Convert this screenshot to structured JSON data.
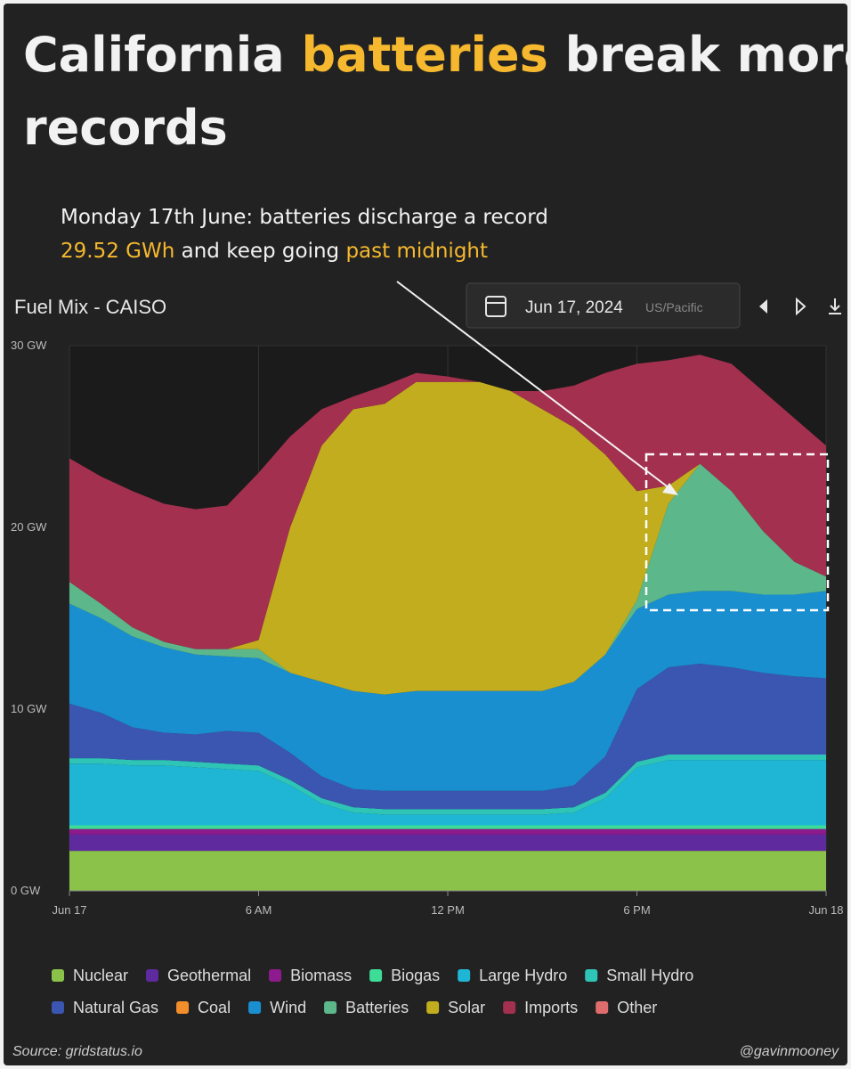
{
  "header": {
    "title_parts": [
      "California",
      "batteries",
      "break more",
      "records"
    ],
    "annotation": [
      "Monday 17th June: batteries discharge a record",
      "29.52 GWh",
      "and keep going",
      "past midnight"
    ]
  },
  "chart_data": {
    "type": "stacked_area",
    "title": "Fuel Mix - CAISO",
    "date": "Jun 17, 2024",
    "timezone": "US/Pacific",
    "x": [
      0,
      1,
      2,
      3,
      4,
      5,
      6,
      7,
      8,
      9,
      10,
      11,
      12,
      13,
      14,
      15,
      16,
      17,
      18,
      19,
      20,
      21,
      22,
      23,
      24
    ],
    "xlim": [
      0,
      24
    ],
    "xticks": [
      {
        "value": 0,
        "label": "Jun 17"
      },
      {
        "value": 6,
        "label": "6 AM"
      },
      {
        "value": 12,
        "label": "12 PM"
      },
      {
        "value": 18,
        "label": "6 PM"
      },
      {
        "value": 24,
        "label": "Jun 18"
      }
    ],
    "ylim": [
      0,
      30
    ],
    "yticks": [
      {
        "value": 0,
        "label": "0 GW"
      },
      {
        "value": 10,
        "label": "10 GW"
      },
      {
        "value": 20,
        "label": "20 GW"
      },
      {
        "value": 30,
        "label": "30 GW"
      }
    ],
    "grid": true,
    "series": [
      {
        "name": "Nuclear",
        "color": "#8bc34a",
        "values": [
          2.2,
          2.2,
          2.2,
          2.2,
          2.2,
          2.2,
          2.2,
          2.2,
          2.2,
          2.2,
          2.2,
          2.2,
          2.2,
          2.2,
          2.2,
          2.2,
          2.2,
          2.2,
          2.2,
          2.2,
          2.2,
          2.2,
          2.2,
          2.2,
          2.2
        ]
      },
      {
        "name": "Geothermal",
        "color": "#5e2a9e",
        "values": [
          0.9,
          0.9,
          0.9,
          0.9,
          0.9,
          0.9,
          0.9,
          0.9,
          0.9,
          0.9,
          0.9,
          0.9,
          0.9,
          0.9,
          0.9,
          0.9,
          0.9,
          0.9,
          0.9,
          0.9,
          0.9,
          0.9,
          0.9,
          0.9,
          0.9
        ]
      },
      {
        "name": "Biomass",
        "color": "#8e1b8e",
        "values": [
          0.3,
          0.3,
          0.3,
          0.3,
          0.3,
          0.3,
          0.3,
          0.3,
          0.3,
          0.3,
          0.3,
          0.3,
          0.3,
          0.3,
          0.3,
          0.3,
          0.3,
          0.3,
          0.3,
          0.3,
          0.3,
          0.3,
          0.3,
          0.3,
          0.3
        ]
      },
      {
        "name": "Biogas",
        "color": "#3ddc97",
        "values": [
          0.2,
          0.2,
          0.2,
          0.2,
          0.2,
          0.2,
          0.2,
          0.2,
          0.2,
          0.2,
          0.2,
          0.2,
          0.2,
          0.2,
          0.2,
          0.2,
          0.2,
          0.2,
          0.2,
          0.2,
          0.2,
          0.2,
          0.2,
          0.2,
          0.2
        ]
      },
      {
        "name": "Large Hydro",
        "color": "#1fb6d6",
        "values": [
          3.4,
          3.4,
          3.3,
          3.3,
          3.2,
          3.1,
          3.0,
          2.2,
          1.2,
          0.7,
          0.6,
          0.6,
          0.6,
          0.6,
          0.6,
          0.6,
          0.7,
          1.5,
          3.2,
          3.6,
          3.6,
          3.6,
          3.6,
          3.6,
          3.6
        ]
      },
      {
        "name": "Small Hydro",
        "color": "#2ec4b6",
        "values": [
          0.3,
          0.3,
          0.3,
          0.3,
          0.3,
          0.3,
          0.3,
          0.3,
          0.3,
          0.3,
          0.3,
          0.3,
          0.3,
          0.3,
          0.3,
          0.3,
          0.3,
          0.3,
          0.3,
          0.3,
          0.3,
          0.3,
          0.3,
          0.3,
          0.3
        ]
      },
      {
        "name": "Natural Gas",
        "color": "#3b56b0",
        "values": [
          3.0,
          2.5,
          1.8,
          1.5,
          1.5,
          1.8,
          1.8,
          1.5,
          1.2,
          1.0,
          1.0,
          1.0,
          1.0,
          1.0,
          1.0,
          1.0,
          1.2,
          2.0,
          4.0,
          4.8,
          5.0,
          4.8,
          4.5,
          4.3,
          4.2
        ]
      },
      {
        "name": "Coal",
        "color": "#f28e2b",
        "values": [
          0,
          0,
          0,
          0,
          0,
          0,
          0,
          0,
          0,
          0,
          0,
          0,
          0,
          0,
          0,
          0,
          0,
          0,
          0,
          0,
          0,
          0,
          0,
          0,
          0
        ]
      },
      {
        "name": "Wind",
        "color": "#1a8fd0",
        "values": [
          5.5,
          5.2,
          5.0,
          4.7,
          4.4,
          4.1,
          4.1,
          4.4,
          5.2,
          5.4,
          5.3,
          5.5,
          5.5,
          5.5,
          5.5,
          5.5,
          5.7,
          5.6,
          4.4,
          4.0,
          4.0,
          4.2,
          4.3,
          4.5,
          4.8
        ]
      },
      {
        "name": "Batteries",
        "color": "#5cb88a",
        "values": [
          1.2,
          0.8,
          0.5,
          0.3,
          0.3,
          0.4,
          0.5,
          0,
          0,
          0,
          0,
          0,
          0,
          0,
          0,
          0,
          0,
          0,
          0.5,
          5.0,
          7.0,
          5.5,
          3.5,
          1.8,
          0.8
        ]
      },
      {
        "name": "Solar",
        "color": "#c2ad1e",
        "values": [
          0,
          0,
          0,
          0,
          0,
          0,
          0.5,
          8,
          13,
          15.5,
          16,
          17,
          17,
          17,
          16.5,
          15.5,
          14,
          11,
          6,
          1,
          0,
          0,
          0,
          0,
          0
        ]
      },
      {
        "name": "Imports",
        "color": "#a3304f",
        "values": [
          6.8,
          7.0,
          7.5,
          7.6,
          7.7,
          7.9,
          9.2,
          5.0,
          2.0,
          0.7,
          1.0,
          0.5,
          0.3,
          0,
          0,
          1.0,
          2.3,
          4.5,
          7,
          6.9,
          6.0,
          7.0,
          7.7,
          7.9,
          7.2
        ]
      },
      {
        "name": "Other",
        "color": "#e06d6d",
        "values": [
          0,
          0,
          0,
          0,
          0,
          0,
          0,
          0,
          0,
          0,
          0,
          0,
          0,
          0,
          0,
          0,
          0,
          0,
          0,
          0,
          0,
          0,
          0,
          0,
          0
        ]
      }
    ]
  },
  "footer": {
    "source": "Source: gridstatus.io",
    "handle": "@gavinmooney"
  }
}
